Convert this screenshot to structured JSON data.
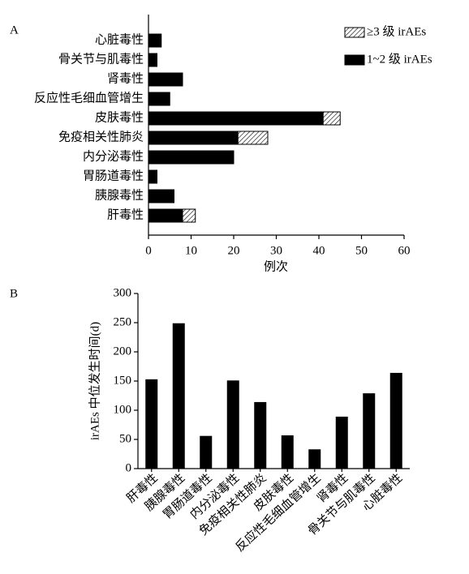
{
  "chart_data": [
    {
      "type": "hbar_stacked",
      "panel": "A",
      "xlabel": "例次",
      "categories": [
        "心脏毒性",
        "骨关节与肌毒性",
        "肾毒性",
        "反应性毛细血管增生",
        "皮肤毒性",
        "免疫相关性肺炎",
        "内分泌毒性",
        "胃肠道毒性",
        "胰腺毒性",
        "肝毒性"
      ],
      "series": [
        {
          "name": "1~2 级 irAEs",
          "color": "#000000",
          "values": [
            3,
            2,
            8,
            5,
            41,
            21,
            20,
            2,
            6,
            8
          ]
        },
        {
          "name": "≥3 级 irAEs",
          "color": "#000000",
          "pattern": "hatch",
          "values": [
            0,
            0,
            0,
            0,
            4,
            7,
            0,
            0,
            0,
            3
          ]
        }
      ],
      "xlim": [
        0,
        60
      ],
      "xticks": [
        0,
        10,
        20,
        30,
        40,
        50,
        60
      ],
      "legend": "upper right"
    },
    {
      "type": "bar",
      "panel": "B",
      "ylabel": "irAEs 中位发生时间(d)",
      "categories": [
        "肝毒性",
        "胰腺毒性",
        "胃肠道毒性",
        "内分泌毒性",
        "免疫相关性肺炎",
        "皮肤毒性",
        "反应性毛细血管增生",
        "肾毒性",
        "骨关节与肌毒性",
        "心脏毒性"
      ],
      "values": [
        153,
        249,
        56,
        151,
        114,
        57,
        33,
        89,
        129,
        164
      ],
      "color": "#000000",
      "ylim": [
        0,
        300
      ],
      "yticks": [
        0,
        50,
        100,
        150,
        200,
        250,
        300
      ]
    }
  ]
}
